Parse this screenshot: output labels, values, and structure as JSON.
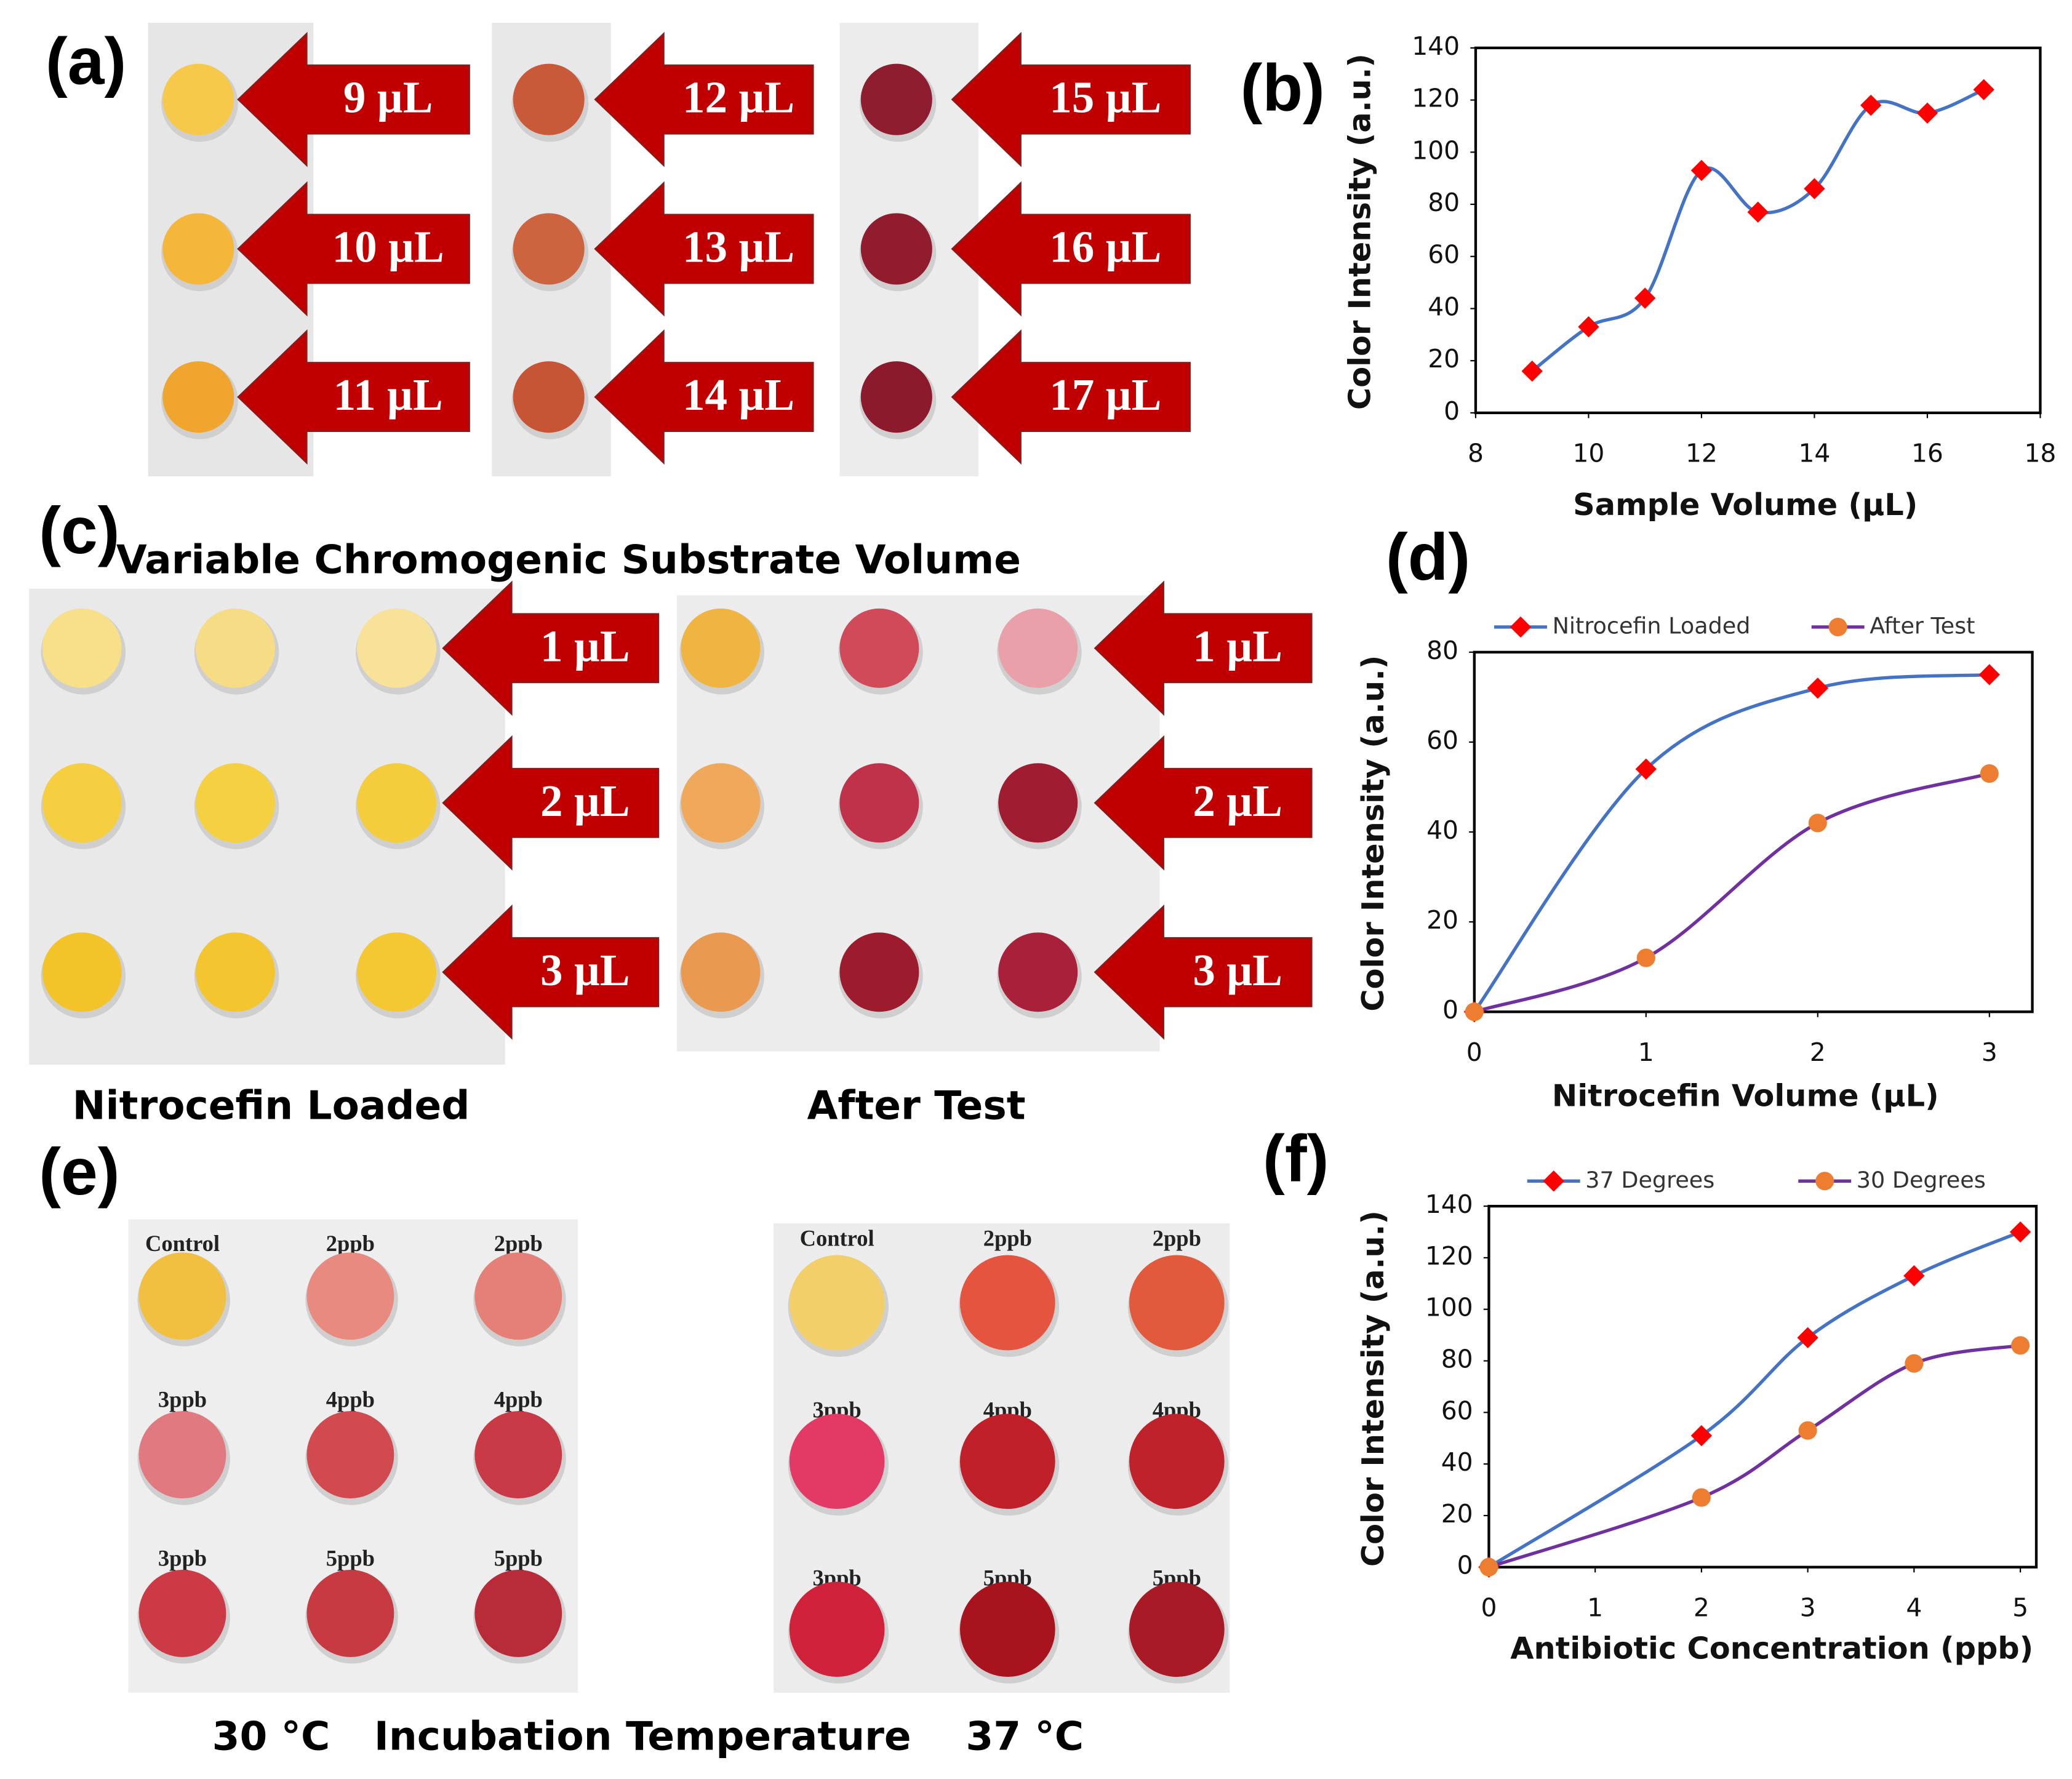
{
  "panel_labels": [
    "(a)",
    "(b)",
    "(c)",
    "(d)",
    "(e)",
    "(f)"
  ],
  "panel_a": {
    "arrows": [
      "9 µL",
      "10 µL",
      "11 µL",
      "12 µL",
      "13 µL",
      "14 µL",
      "15 µL",
      "16 µL",
      "17 µL"
    ]
  },
  "panel_c": {
    "title": "Variable Chromogenic Substrate Volume",
    "arrows_left": [
      "1 µL",
      "2 µL",
      "3 µL"
    ],
    "arrows_right": [
      "1 µL",
      "2 µL",
      "3 µL"
    ],
    "captions": [
      "Nitrocefin Loaded",
      "After Test"
    ]
  },
  "panel_e": {
    "left_labels": [
      "Control",
      "2ppb",
      "2ppb",
      "3ppb",
      "4ppb",
      "4ppb",
      "3ppb",
      "5ppb",
      "5ppb"
    ],
    "right_labels": [
      "Control",
      "2ppb",
      "2ppb",
      "3ppb",
      "4ppb",
      "4ppb",
      "3ppb",
      "5ppb",
      "5ppb"
    ],
    "captions": [
      "30 °C",
      "Incubation Temperature",
      "37 °C"
    ]
  },
  "chart_data": [
    {
      "type": "line",
      "x_label": "Sample Volume (µL)",
      "y_label": "Color Intensity (a.u.)",
      "x": [
        9,
        10,
        11,
        12,
        13,
        14,
        15,
        16,
        17
      ],
      "series": [
        {
          "color": "#4472c4",
          "marker_color": "#ff0000",
          "marker": "diamond",
          "values": [
            16,
            33,
            44,
            93,
            77,
            86,
            118,
            115,
            124
          ]
        }
      ],
      "xlim": [
        8,
        18
      ],
      "xticks": [
        8,
        10,
        12,
        14,
        16,
        18
      ],
      "ylim": [
        0,
        140
      ],
      "yticks": [
        0,
        20,
        40,
        60,
        80,
        100,
        120,
        140
      ],
      "grid": false,
      "smooth": true
    },
    {
      "type": "line",
      "x_label": "Nitrocefin Volume (µL)",
      "y_label": "Color Intensity (a.u.)",
      "x": [
        0,
        1,
        2,
        3
      ],
      "series": [
        {
          "name": "Nitrocefin Loaded",
          "color": "#4472c4",
          "marker_color": "#ff0000",
          "marker": "diamond",
          "values": [
            0,
            54,
            72,
            75
          ]
        },
        {
          "name": "After Test",
          "color": "#7030a0",
          "marker_color": "#ed7d31",
          "marker": "circle",
          "values": [
            0,
            12,
            42,
            53
          ]
        }
      ],
      "xlim": [
        0,
        3.25
      ],
      "xticks": [
        0,
        1,
        2,
        3
      ],
      "ylim": [
        0,
        80
      ],
      "yticks": [
        0,
        20,
        40,
        60,
        80
      ],
      "grid": false,
      "smooth": true,
      "legend": "top"
    },
    {
      "type": "line",
      "x_label": "Antibiotic Concentration (ppb)",
      "y_label": "Color Intensity (a.u.)",
      "x": [
        0,
        2,
        3,
        4,
        5
      ],
      "series": [
        {
          "name": "37 Degrees",
          "color": "#4472c4",
          "marker_color": "#ff0000",
          "marker": "diamond",
          "values": [
            0,
            51,
            89,
            113,
            130
          ]
        },
        {
          "name": "30 Degrees",
          "color": "#7030a0",
          "marker_color": "#ed7d31",
          "marker": "circle",
          "values": [
            0,
            27,
            53,
            79,
            86
          ]
        }
      ],
      "xlim": [
        0,
        5.15
      ],
      "xticks": [
        0,
        1,
        2,
        3,
        4,
        5
      ],
      "ylim": [
        0,
        140
      ],
      "yticks": [
        0,
        20,
        40,
        60,
        80,
        100,
        120,
        140
      ],
      "grid": false,
      "smooth": true,
      "legend": "top"
    }
  ]
}
